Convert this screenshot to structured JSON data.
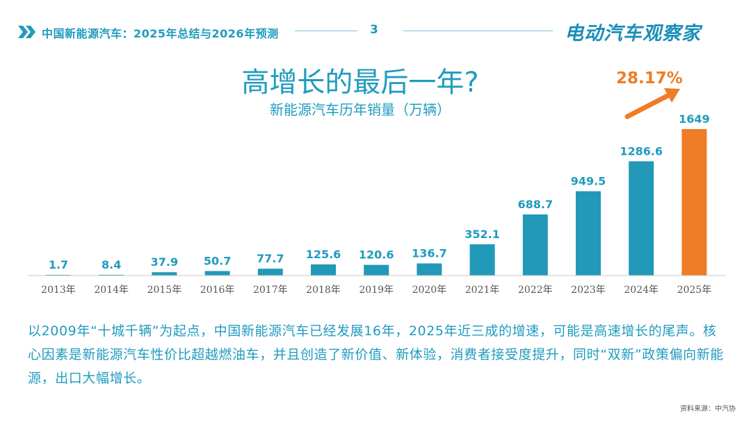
{
  "header": {
    "title": "中国新能源汽车：2025年总结与2026年预测",
    "page_number": "3",
    "logo": "电动汽车观察家"
  },
  "chart_data": {
    "type": "bar",
    "title": "高增长的最后一年?",
    "subtitle": "新能源汽车历年销量（万辆）",
    "categories": [
      "2013年",
      "2014年",
      "2015年",
      "2016年",
      "2017年",
      "2018年",
      "2019年",
      "2020年",
      "2021年",
      "2022年",
      "2023年",
      "2024年",
      "2025年"
    ],
    "values": [
      1.7,
      8.4,
      37.9,
      50.7,
      77.7,
      125.6,
      120.6,
      136.7,
      352.1,
      688.7,
      949.5,
      1286.6,
      1649
    ],
    "value_labels": [
      "1.7",
      "8.4",
      "37.9",
      "50.7",
      "77.7",
      "125.6",
      "120.6",
      "136.7",
      "352.1",
      "688.7",
      "949.5",
      "1286.6",
      "1649"
    ],
    "highlight_index": 12,
    "annotation": "28.17%",
    "ylim": [
      0,
      1649
    ],
    "colors": {
      "bar": "#2299b8",
      "highlight": "#ef7c26",
      "axis": "#c8c8c8"
    }
  },
  "description": "以2009年“十城千辆”为起点，中国新能源汽车已经发展16年，2025年近三成的增速，可能是高速增长的尾声。核心因素是新能源汽车性价比超越燃油车，并且创造了新价值、新体验，消费者接受度提升，同时“双新”政策偏向新能源，出口大幅增长。",
  "source": "资料来源：中汽协"
}
